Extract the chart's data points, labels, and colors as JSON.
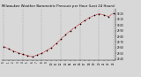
{
  "title": "Milwaukee Weather Barometric Pressure per Hour (Last 24 Hours)",
  "background_color": "#d8d8d8",
  "plot_bg_color": "#d8d8d8",
  "grid_color": "#888888",
  "line_color": "#cc0000",
  "marker_color": "#000000",
  "marker_size": 1.2,
  "line_width": 0.5,
  "hours": [
    0,
    1,
    2,
    3,
    4,
    5,
    6,
    7,
    8,
    9,
    10,
    11,
    12,
    13,
    14,
    15,
    16,
    17,
    18,
    19,
    20,
    21,
    22,
    23
  ],
  "pressure": [
    29.62,
    29.58,
    29.54,
    29.51,
    29.48,
    29.46,
    29.44,
    29.47,
    29.5,
    29.55,
    29.6,
    29.67,
    29.75,
    29.83,
    29.9,
    29.96,
    30.02,
    30.08,
    30.13,
    30.17,
    30.2,
    30.18,
    30.15,
    30.21
  ],
  "ylim_min": 29.38,
  "ylim_max": 30.28,
  "ytick_interval": 0.1,
  "title_fontsize": 2.8,
  "tick_fontsize": 2.0,
  "vgrid_positions": [
    0,
    4,
    8,
    12,
    16,
    20,
    23
  ]
}
